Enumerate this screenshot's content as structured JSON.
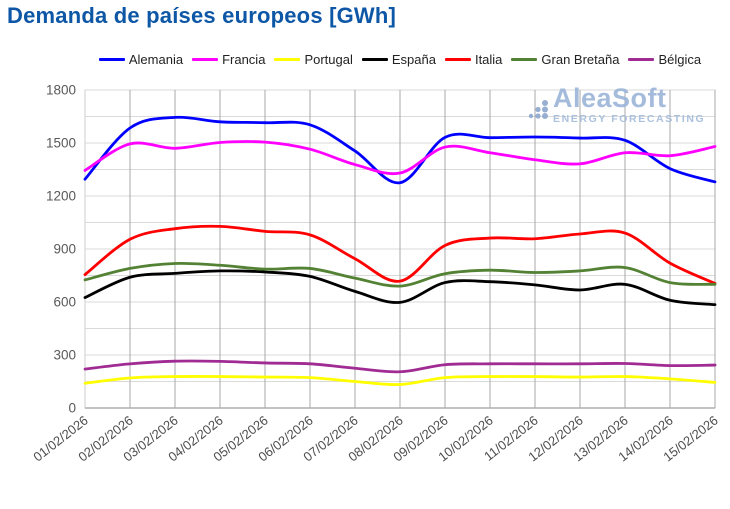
{
  "chart_data": {
    "type": "line",
    "title": "Demanda de países europeos [GWh]",
    "xlabel": "",
    "ylabel": "",
    "ylim": [
      0,
      1800
    ],
    "ytick_step": 300,
    "grid_step": 150,
    "grid": true,
    "legend_position": "top",
    "x": [
      "01/02/2026",
      "02/02/2026",
      "03/02/2026",
      "04/02/2026",
      "05/02/2026",
      "06/02/2026",
      "07/02/2026",
      "08/02/2026",
      "09/02/2026",
      "10/02/2026",
      "11/02/2026",
      "12/02/2026",
      "13/02/2026",
      "14/02/2026",
      "15/02/2026"
    ],
    "series": [
      {
        "name": "Alemania",
        "color": "#0000FF",
        "values": [
          1295,
          1585,
          1645,
          1620,
          1615,
          1603,
          1455,
          1275,
          1532,
          1530,
          1534,
          1528,
          1515,
          1355,
          1280
        ]
      },
      {
        "name": "Francia",
        "color": "#FF00FF",
        "values": [
          1345,
          1495,
          1470,
          1503,
          1505,
          1465,
          1378,
          1330,
          1477,
          1445,
          1405,
          1382,
          1445,
          1428,
          1480
        ]
      },
      {
        "name": "Portugal",
        "color": "#FFFF00",
        "values": [
          140,
          170,
          178,
          178,
          175,
          172,
          150,
          133,
          172,
          178,
          178,
          175,
          178,
          165,
          145
        ]
      },
      {
        "name": "España",
        "color": "#000000",
        "values": [
          625,
          740,
          762,
          776,
          770,
          745,
          660,
          598,
          710,
          715,
          697,
          668,
          700,
          610,
          585
        ]
      },
      {
        "name": "Italia",
        "color": "#FF0000",
        "values": [
          755,
          955,
          1015,
          1028,
          1000,
          980,
          845,
          718,
          920,
          962,
          958,
          985,
          990,
          820,
          705
        ]
      },
      {
        "name": "Gran Bretaña",
        "color": "#548235",
        "values": [
          725,
          790,
          818,
          808,
          786,
          790,
          735,
          690,
          760,
          780,
          767,
          776,
          795,
          710,
          700
        ]
      },
      {
        "name": "Bélgica",
        "color": "#A02B93",
        "values": [
          220,
          250,
          265,
          264,
          255,
          250,
          225,
          205,
          245,
          250,
          250,
          250,
          252,
          240,
          243
        ]
      }
    ],
    "y_tick_labels": [
      "0",
      "300",
      "600",
      "900",
      "1200",
      "1500",
      "1800"
    ]
  },
  "watermark": {
    "brand": "AleaSoft",
    "tagline": "ENERGY FORECASTING"
  },
  "colors": {
    "title": "#0D57A6",
    "grid_horizontal": "#DADADA",
    "grid_vertical": "#A8A8A8",
    "axis": "#C3C3C3",
    "plot_border": "#CCCCCC",
    "tick_text": "#595959",
    "watermark_text": "#9DB6D8",
    "watermark_tagline": "#A4BCDB",
    "watermark_dots": "#8FA9CE"
  }
}
